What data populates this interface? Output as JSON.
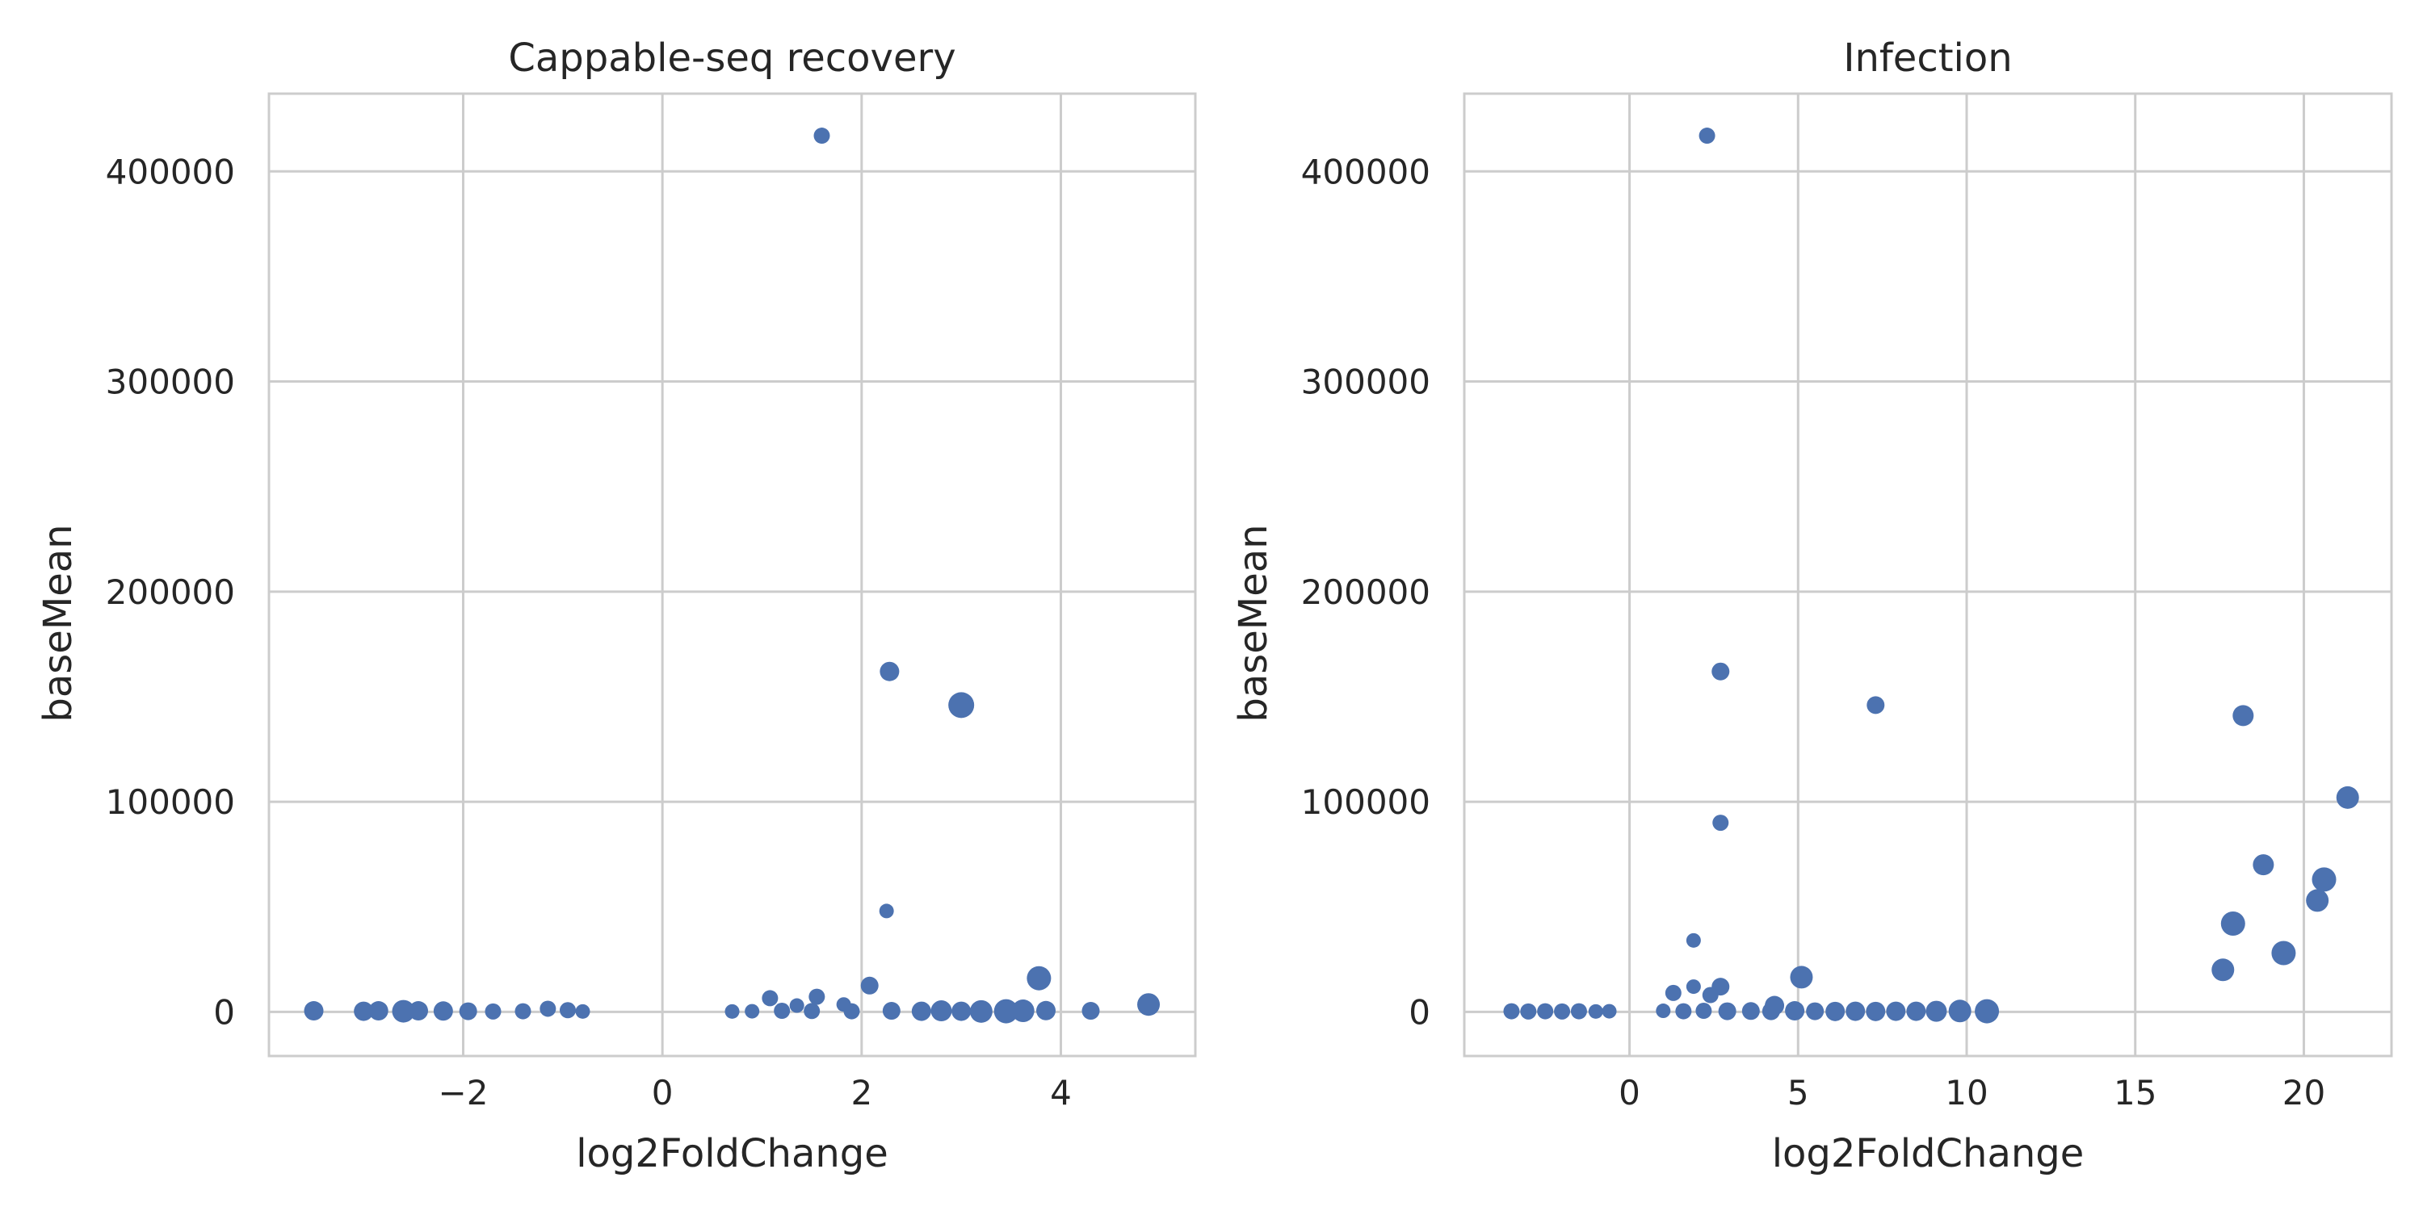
{
  "chart_data": [
    {
      "type": "scatter",
      "title": "Cappable-seq recovery",
      "xlabel": "log2FoldChange",
      "ylabel": "baseMean",
      "xlim": [
        -3.95,
        5.35
      ],
      "ylim": [
        -21000,
        437000
      ],
      "xticks": [
        -2,
        0,
        2,
        4
      ],
      "xtick_labels": [
        "−2",
        "0",
        "2",
        "4"
      ],
      "yticks": [
        0,
        100000,
        200000,
        300000,
        400000
      ],
      "ytick_labels": [
        "0",
        "100000",
        "200000",
        "300000",
        "400000"
      ],
      "grid": true,
      "color": "#4c72b0",
      "points": [
        {
          "x": 1.6,
          "y": 417000,
          "s": 10
        },
        {
          "x": 2.28,
          "y": 162000,
          "s": 12
        },
        {
          "x": 3.0,
          "y": 146000,
          "s": 16
        },
        {
          "x": 2.25,
          "y": 48000,
          "s": 9
        },
        {
          "x": 2.08,
          "y": 12500,
          "s": 11
        },
        {
          "x": 3.78,
          "y": 16000,
          "s": 15
        },
        {
          "x": 1.08,
          "y": 6500,
          "s": 10
        },
        {
          "x": 1.55,
          "y": 7200,
          "s": 10
        },
        {
          "x": 1.82,
          "y": 3500,
          "s": 9
        },
        {
          "x": 1.35,
          "y": 3000,
          "s": 9
        },
        {
          "x": 4.88,
          "y": 3500,
          "s": 14
        },
        {
          "x": 4.3,
          "y": 500,
          "s": 11
        },
        {
          "x": -3.5,
          "y": 500,
          "s": 12
        },
        {
          "x": -3.0,
          "y": 300,
          "s": 12
        },
        {
          "x": -2.85,
          "y": 500,
          "s": 12
        },
        {
          "x": -2.6,
          "y": 300,
          "s": 14
        },
        {
          "x": -2.45,
          "y": 500,
          "s": 12
        },
        {
          "x": -2.2,
          "y": 400,
          "s": 12
        },
        {
          "x": -1.95,
          "y": 300,
          "s": 11
        },
        {
          "x": -1.7,
          "y": 200,
          "s": 10
        },
        {
          "x": -1.4,
          "y": 300,
          "s": 10
        },
        {
          "x": -1.15,
          "y": 1500,
          "s": 10
        },
        {
          "x": -0.95,
          "y": 800,
          "s": 10
        },
        {
          "x": -0.8,
          "y": 200,
          "s": 9
        },
        {
          "x": 0.7,
          "y": 200,
          "s": 9
        },
        {
          "x": 0.9,
          "y": 300,
          "s": 9
        },
        {
          "x": 1.2,
          "y": 500,
          "s": 10
        },
        {
          "x": 1.5,
          "y": 400,
          "s": 10
        },
        {
          "x": 1.9,
          "y": 300,
          "s": 10
        },
        {
          "x": 2.3,
          "y": 500,
          "s": 11
        },
        {
          "x": 2.6,
          "y": 300,
          "s": 12
        },
        {
          "x": 2.8,
          "y": 500,
          "s": 13
        },
        {
          "x": 3.0,
          "y": 300,
          "s": 12
        },
        {
          "x": 3.2,
          "y": 200,
          "s": 14
        },
        {
          "x": 3.45,
          "y": 300,
          "s": 15
        },
        {
          "x": 3.62,
          "y": 500,
          "s": 14
        },
        {
          "x": 3.85,
          "y": 600,
          "s": 12
        }
      ]
    },
    {
      "type": "scatter",
      "title": "Infection",
      "xlabel": "log2FoldChange",
      "ylabel": "baseMean",
      "xlim": [
        -4.9,
        22.6
      ],
      "ylim": [
        -21000,
        437000
      ],
      "xticks": [
        0,
        5,
        10,
        15,
        20
      ],
      "xtick_labels": [
        "0",
        "5",
        "10",
        "15",
        "20"
      ],
      "yticks": [
        0,
        100000,
        200000,
        300000,
        400000
      ],
      "ytick_labels": [
        "0",
        "100000",
        "200000",
        "300000",
        "400000"
      ],
      "grid": true,
      "color": "#4c72b0",
      "points": [
        {
          "x": 2.3,
          "y": 417000,
          "s": 10
        },
        {
          "x": 2.7,
          "y": 162000,
          "s": 11
        },
        {
          "x": 7.3,
          "y": 146000,
          "s": 11
        },
        {
          "x": 2.7,
          "y": 90000,
          "s": 10
        },
        {
          "x": 1.9,
          "y": 34000,
          "s": 9
        },
        {
          "x": 1.9,
          "y": 12000,
          "s": 9
        },
        {
          "x": 1.3,
          "y": 9000,
          "s": 10
        },
        {
          "x": 2.4,
          "y": 8000,
          "s": 10
        },
        {
          "x": 2.7,
          "y": 12000,
          "s": 11
        },
        {
          "x": 5.1,
          "y": 16500,
          "s": 14
        },
        {
          "x": 4.3,
          "y": 3000,
          "s": 12
        },
        {
          "x": 18.2,
          "y": 141000,
          "s": 13
        },
        {
          "x": 21.3,
          "y": 102000,
          "s": 14
        },
        {
          "x": 18.8,
          "y": 70000,
          "s": 13
        },
        {
          "x": 20.6,
          "y": 63000,
          "s": 15
        },
        {
          "x": 20.4,
          "y": 53000,
          "s": 14
        },
        {
          "x": 17.9,
          "y": 42000,
          "s": 15
        },
        {
          "x": 19.4,
          "y": 28000,
          "s": 15
        },
        {
          "x": 17.6,
          "y": 20000,
          "s": 14
        },
        {
          "x": -3.5,
          "y": 300,
          "s": 10
        },
        {
          "x": -3.0,
          "y": 200,
          "s": 10
        },
        {
          "x": -2.5,
          "y": 300,
          "s": 10
        },
        {
          "x": -2.0,
          "y": 200,
          "s": 10
        },
        {
          "x": -1.5,
          "y": 300,
          "s": 10
        },
        {
          "x": -1.0,
          "y": 200,
          "s": 9
        },
        {
          "x": -0.6,
          "y": 300,
          "s": 9
        },
        {
          "x": 1.0,
          "y": 500,
          "s": 9
        },
        {
          "x": 1.6,
          "y": 300,
          "s": 10
        },
        {
          "x": 2.2,
          "y": 500,
          "s": 10
        },
        {
          "x": 2.9,
          "y": 300,
          "s": 11
        },
        {
          "x": 3.6,
          "y": 400,
          "s": 11
        },
        {
          "x": 4.2,
          "y": 300,
          "s": 11
        },
        {
          "x": 4.9,
          "y": 500,
          "s": 12
        },
        {
          "x": 5.5,
          "y": 300,
          "s": 11
        },
        {
          "x": 6.1,
          "y": 200,
          "s": 12
        },
        {
          "x": 6.7,
          "y": 300,
          "s": 12
        },
        {
          "x": 7.3,
          "y": 200,
          "s": 12
        },
        {
          "x": 7.9,
          "y": 300,
          "s": 12
        },
        {
          "x": 8.5,
          "y": 300,
          "s": 12
        },
        {
          "x": 9.1,
          "y": 300,
          "s": 13
        },
        {
          "x": 9.8,
          "y": 400,
          "s": 14
        },
        {
          "x": 10.6,
          "y": 300,
          "s": 15
        }
      ]
    }
  ]
}
